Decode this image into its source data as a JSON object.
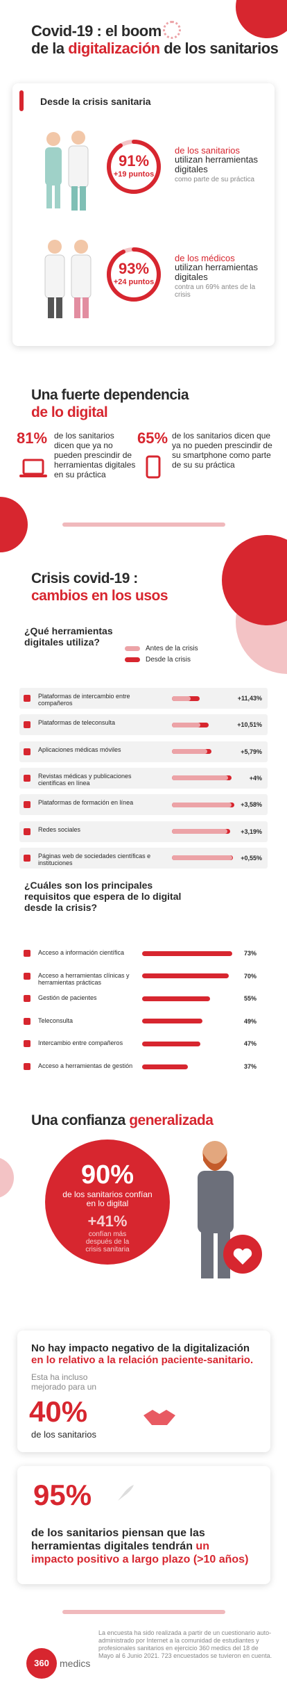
{
  "header": {
    "title_1": "Covid-19 : el boom",
    "title_2a": "de la",
    "title_2b": "digitalización",
    "title_2c": "de los sanitarios"
  },
  "crisis_card": {
    "heading": "Desde la crisis sanitaria",
    "stats": [
      {
        "value": 91,
        "label": "91%",
        "change": "+19 puntos",
        "who": "de los sanitarios",
        "line1": "utilizan herramientas digitales",
        "note": "como parte de su práctica"
      },
      {
        "value": 93,
        "label": "93%",
        "change": "+24 puntos",
        "who": "de los médicos",
        "line1": "utilizan herramientas digitales",
        "note": "contra un 69% antes de la crisis"
      }
    ]
  },
  "dependence": {
    "title_1": "Una fuerte dependencia",
    "title_2": "de lo digital",
    "stats": [
      {
        "label": "81%",
        "text": "de los sanitarios dicen que ya no pueden prescindir de herramientas digitales en su práctica"
      },
      {
        "label": "65%",
        "text": "de los sanitarios dicen que ya no pueden prescindir de su smartphone como parte de su su práctica"
      }
    ]
  },
  "usage": {
    "title_1": "Crisis covid-19 :",
    "title_2": "cambios en los usos",
    "question": "¿Qué herramientas digitales utiliza?",
    "xlim": [
      0,
      100
    ],
    "categories": [
      "Plataformas de intercambio entre compañeros",
      "Plataformas de teleconsulta",
      "Aplicaciones médicas móviles",
      "Revistas médicas y publicaciones científicas en línea",
      "Plataformas de formación en línea",
      "Redes sociales",
      "Páginas web de sociedades científicas e instituciones"
    ],
    "series": [
      {
        "name": "Antes de la crisis",
        "color": "#eca3a7",
        "values": [
          24.57,
          37.49,
          46.21,
          74,
          78.42,
          72.81,
          79.45
        ]
      },
      {
        "name": "Desde la crisis",
        "color": "#d7262f",
        "values": [
          36,
          48,
          52,
          78,
          82,
          76,
          80
        ]
      }
    ],
    "change_labels": [
      "+11,43%",
      "+10,51%",
      "+5,79%",
      "+4%",
      "+3,58%",
      "+3,19%",
      "+0,55%"
    ]
  },
  "requirements": {
    "question": "¿Cuáles son los principales requisitos que espera de lo digital desde la crisis?",
    "xlim": [
      0,
      100
    ],
    "categories": [
      "Acceso a información científica",
      "Acceso a herramientas clínicas y herramientas prácticas",
      "Gestión de pacientes",
      "Teleconsulta",
      "Intercambio entre compañeros",
      "Acceso a herramientas de gestión"
    ],
    "values": [
      73,
      70,
      55,
      49,
      47,
      37
    ],
    "value_labels": [
      "73%",
      "70%",
      "55%",
      "49%",
      "47%",
      "37%"
    ],
    "color": "#d7262f"
  },
  "trust": {
    "title_a": "Una confianza",
    "title_b": "generalizada",
    "main": "90%",
    "main_text": "de los sanitarios confían en lo digital",
    "change": "+41%",
    "change_text": "confían más después de la crisis sanitaria"
  },
  "impact": {
    "title_a": "No hay impacto negativo de la digitalización",
    "title_b": "en lo relativo a la relación paciente-sanitario.",
    "sub": "Esta ha incluso mejorado para un",
    "stat": "40%",
    "stat_text": "de los sanitarios"
  },
  "future": {
    "stat": "95%",
    "text_a": "de los sanitarios piensan que las herramientas digitales tendrán",
    "text_b": "un impacto positivo a largo plazo (>10 años)"
  },
  "footer": {
    "logo": "360",
    "logo_text": "medics",
    "note": "La encuesta ha sido realizada a partir de un cuestionario auto-administrado por Internet a la comunidad de estudiantes y profesionales sanitarios en ejercicio 360 medics del 18 de Mayo al 6 Junio 2021. 723 encuestados se tuvieron en cuenta."
  }
}
